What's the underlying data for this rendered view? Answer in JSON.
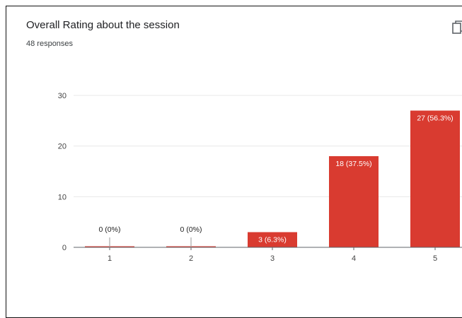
{
  "card": {
    "title": "Overall Rating about the session",
    "responses": "48 responses"
  },
  "icons": {
    "copy": "copy-chart-icon"
  },
  "colors": {
    "bar": "#d93b30",
    "grid": "#e8e8e8",
    "axis": "#5f6368"
  },
  "chart_data": {
    "type": "bar",
    "title": "Overall Rating about the session",
    "subtitle": "48 responses",
    "categories": [
      "1",
      "2",
      "3",
      "4",
      "5"
    ],
    "values": [
      0,
      0,
      3,
      18,
      27
    ],
    "data_labels": [
      "0 (0%)",
      "0 (0%)",
      "3 (6.3%)",
      "18 (37.5%)",
      "27 (56.3%)"
    ],
    "ylim": [
      0,
      30
    ],
    "yticks": [
      "0",
      "10",
      "20",
      "30"
    ],
    "grid": true,
    "xlabel": "",
    "ylabel": ""
  }
}
